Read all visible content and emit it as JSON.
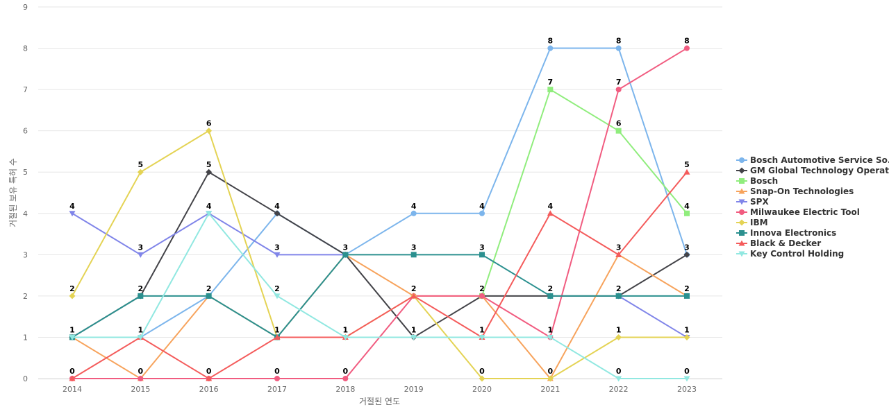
{
  "chart_data": {
    "type": "line",
    "title": "",
    "xlabel": "거절된 연도",
    "ylabel": "거절된 보유 특허 수",
    "x": [
      "2014",
      "2015",
      "2016",
      "2017",
      "2018",
      "2019",
      "2020",
      "2021",
      "2022",
      "2023"
    ],
    "ylim": [
      0,
      9
    ],
    "yticks": [
      0,
      1,
      2,
      3,
      4,
      5,
      6,
      7,
      8,
      9
    ],
    "grid": true,
    "legend_position": "right",
    "series": [
      {
        "name": "Bosch Automotive Service So...",
        "color": "#7cb5ec",
        "marker": "circle",
        "values": [
          1,
          1,
          2,
          4,
          3,
          4,
          4,
          8,
          8,
          3
        ]
      },
      {
        "name": "GM Global Technology Operat...",
        "color": "#434348",
        "marker": "diamond",
        "values": [
          1,
          2,
          5,
          4,
          3,
          1,
          2,
          2,
          2,
          3
        ]
      },
      {
        "name": "Bosch",
        "color": "#90ed7d",
        "marker": "square",
        "values": [
          null,
          null,
          null,
          null,
          null,
          null,
          2,
          7,
          6,
          4
        ]
      },
      {
        "name": "Snap-On Technologies",
        "color": "#f7a35c",
        "marker": "triangle",
        "values": [
          1,
          0,
          2,
          1,
          3,
          2,
          2,
          0,
          3,
          2
        ]
      },
      {
        "name": "SPX",
        "color": "#8085e9",
        "marker": "triangle-down",
        "values": [
          4,
          3,
          4,
          3,
          3,
          null,
          null,
          null,
          2,
          1
        ]
      },
      {
        "name": "Milwaukee Electric Tool",
        "color": "#f15c80",
        "marker": "circle",
        "values": [
          0,
          0,
          0,
          0,
          0,
          2,
          2,
          1,
          7,
          8
        ]
      },
      {
        "name": "IBM",
        "color": "#e4d354",
        "marker": "diamond",
        "values": [
          2,
          5,
          6,
          1,
          1,
          2,
          0,
          0,
          1,
          1
        ]
      },
      {
        "name": "Innova Electronics",
        "color": "#2b908f",
        "marker": "square",
        "values": [
          1,
          2,
          2,
          1,
          3,
          3,
          3,
          2,
          2,
          2
        ]
      },
      {
        "name": "Black & Decker",
        "color": "#f45b5b",
        "marker": "triangle",
        "values": [
          0,
          1,
          0,
          1,
          1,
          2,
          1,
          4,
          3,
          5
        ]
      },
      {
        "name": "Key Control Holding",
        "color": "#91e8e1",
        "marker": "triangle-down",
        "values": [
          1,
          1,
          4,
          2,
          1,
          1,
          1,
          1,
          0,
          0
        ]
      }
    ],
    "data_labels": [
      {
        "x": "2014",
        "y": 4,
        "text": "4"
      },
      {
        "x": "2014",
        "y": 2,
        "text": "2"
      },
      {
        "x": "2014",
        "y": 1,
        "text": "1"
      },
      {
        "x": "2014",
        "y": 0,
        "text": "0"
      },
      {
        "x": "2015",
        "y": 5,
        "text": "5"
      },
      {
        "x": "2015",
        "y": 3,
        "text": "3"
      },
      {
        "x": "2015",
        "y": 2,
        "text": "2"
      },
      {
        "x": "2015",
        "y": 1,
        "text": "1"
      },
      {
        "x": "2015",
        "y": 0,
        "text": "0"
      },
      {
        "x": "2016",
        "y": 6,
        "text": "6"
      },
      {
        "x": "2016",
        "y": 5,
        "text": "5"
      },
      {
        "x": "2016",
        "y": 4,
        "text": "4"
      },
      {
        "x": "2016",
        "y": 2,
        "text": "2"
      },
      {
        "x": "2016",
        "y": 0,
        "text": "0"
      },
      {
        "x": "2017",
        "y": 4,
        "text": "4"
      },
      {
        "x": "2017",
        "y": 3,
        "text": "3"
      },
      {
        "x": "2017",
        "y": 2,
        "text": "2"
      },
      {
        "x": "2017",
        "y": 1,
        "text": "1"
      },
      {
        "x": "2017",
        "y": 0,
        "text": "0"
      },
      {
        "x": "2018",
        "y": 3,
        "text": "3"
      },
      {
        "x": "2018",
        "y": 1,
        "text": "1"
      },
      {
        "x": "2018",
        "y": 0,
        "text": "0"
      },
      {
        "x": "2019",
        "y": 4,
        "text": "4"
      },
      {
        "x": "2019",
        "y": 3,
        "text": "3"
      },
      {
        "x": "2019",
        "y": 2,
        "text": "2"
      },
      {
        "x": "2019",
        "y": 1,
        "text": "1"
      },
      {
        "x": "2020",
        "y": 4,
        "text": "4"
      },
      {
        "x": "2020",
        "y": 3,
        "text": "3"
      },
      {
        "x": "2020",
        "y": 2,
        "text": "2"
      },
      {
        "x": "2020",
        "y": 1,
        "text": "1"
      },
      {
        "x": "2020",
        "y": 0,
        "text": "0"
      },
      {
        "x": "2021",
        "y": 8,
        "text": "8"
      },
      {
        "x": "2021",
        "y": 7,
        "text": "7"
      },
      {
        "x": "2021",
        "y": 4,
        "text": "4"
      },
      {
        "x": "2021",
        "y": 2,
        "text": "2"
      },
      {
        "x": "2021",
        "y": 1,
        "text": "1"
      },
      {
        "x": "2021",
        "y": 0,
        "text": "0"
      },
      {
        "x": "2022",
        "y": 8,
        "text": "8"
      },
      {
        "x": "2022",
        "y": 7,
        "text": "7"
      },
      {
        "x": "2022",
        "y": 6,
        "text": "6"
      },
      {
        "x": "2022",
        "y": 3,
        "text": "3"
      },
      {
        "x": "2022",
        "y": 2,
        "text": "2"
      },
      {
        "x": "2022",
        "y": 1,
        "text": "1"
      },
      {
        "x": "2022",
        "y": 0,
        "text": "0"
      },
      {
        "x": "2023",
        "y": 8,
        "text": "8"
      },
      {
        "x": "2023",
        "y": 5,
        "text": "5"
      },
      {
        "x": "2023",
        "y": 4,
        "text": "4"
      },
      {
        "x": "2023",
        "y": 3,
        "text": "3"
      },
      {
        "x": "2023",
        "y": 2,
        "text": "2"
      },
      {
        "x": "2023",
        "y": 1,
        "text": "1"
      },
      {
        "x": "2023",
        "y": 0,
        "text": "0"
      }
    ]
  }
}
